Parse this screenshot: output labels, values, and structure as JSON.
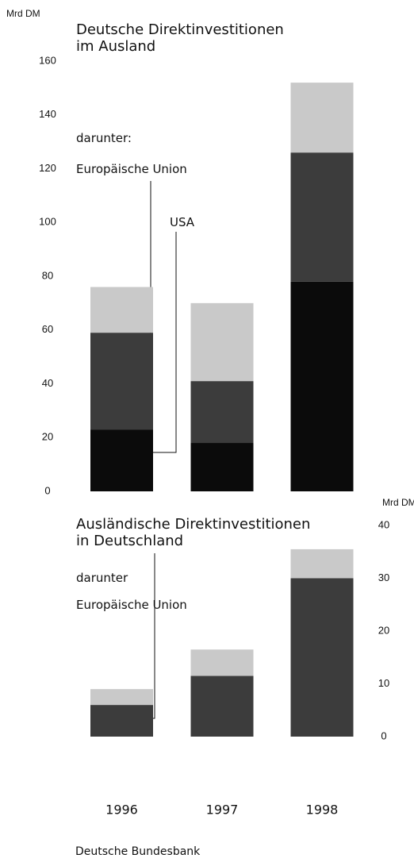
{
  "chart_data": [
    {
      "type": "bar",
      "stacked": true,
      "title": "Deutsche Direktinvestitionen im Ausland",
      "annotation": "darunter:",
      "yunit": "Mrd DM",
      "categories": [
        "1996",
        "1997",
        "1998"
      ],
      "series": [
        {
          "name": "USA",
          "color": "#0b0b0b",
          "values": [
            23,
            18,
            78
          ]
        },
        {
          "name": "Europäische Union",
          "color": "#3c3c3c",
          "values": [
            36,
            23,
            48
          ]
        },
        {
          "color": "#c9c9c9",
          "values": [
            17,
            29,
            26
          ]
        }
      ],
      "ylim": [
        0,
        160
      ],
      "yticks": [
        0,
        20,
        40,
        60,
        80,
        100,
        120,
        140,
        160
      ]
    },
    {
      "type": "bar",
      "stacked": true,
      "title": "Ausländische Direktinvestitionen in Deutschland",
      "annotation": "darunter",
      "yunit": "Mrd DM",
      "series": [
        {
          "name": "Europäische Union",
          "color": "#3c3c3c",
          "values": [
            6,
            11.5,
            30
          ]
        },
        {
          "color": "#c9c9c9",
          "values": [
            3,
            5,
            5.5
          ]
        }
      ],
      "ylim": [
        0,
        40
      ],
      "yticks": [
        0,
        10,
        20,
        30,
        40
      ]
    }
  ],
  "source": "Deutsche Bundesbank"
}
